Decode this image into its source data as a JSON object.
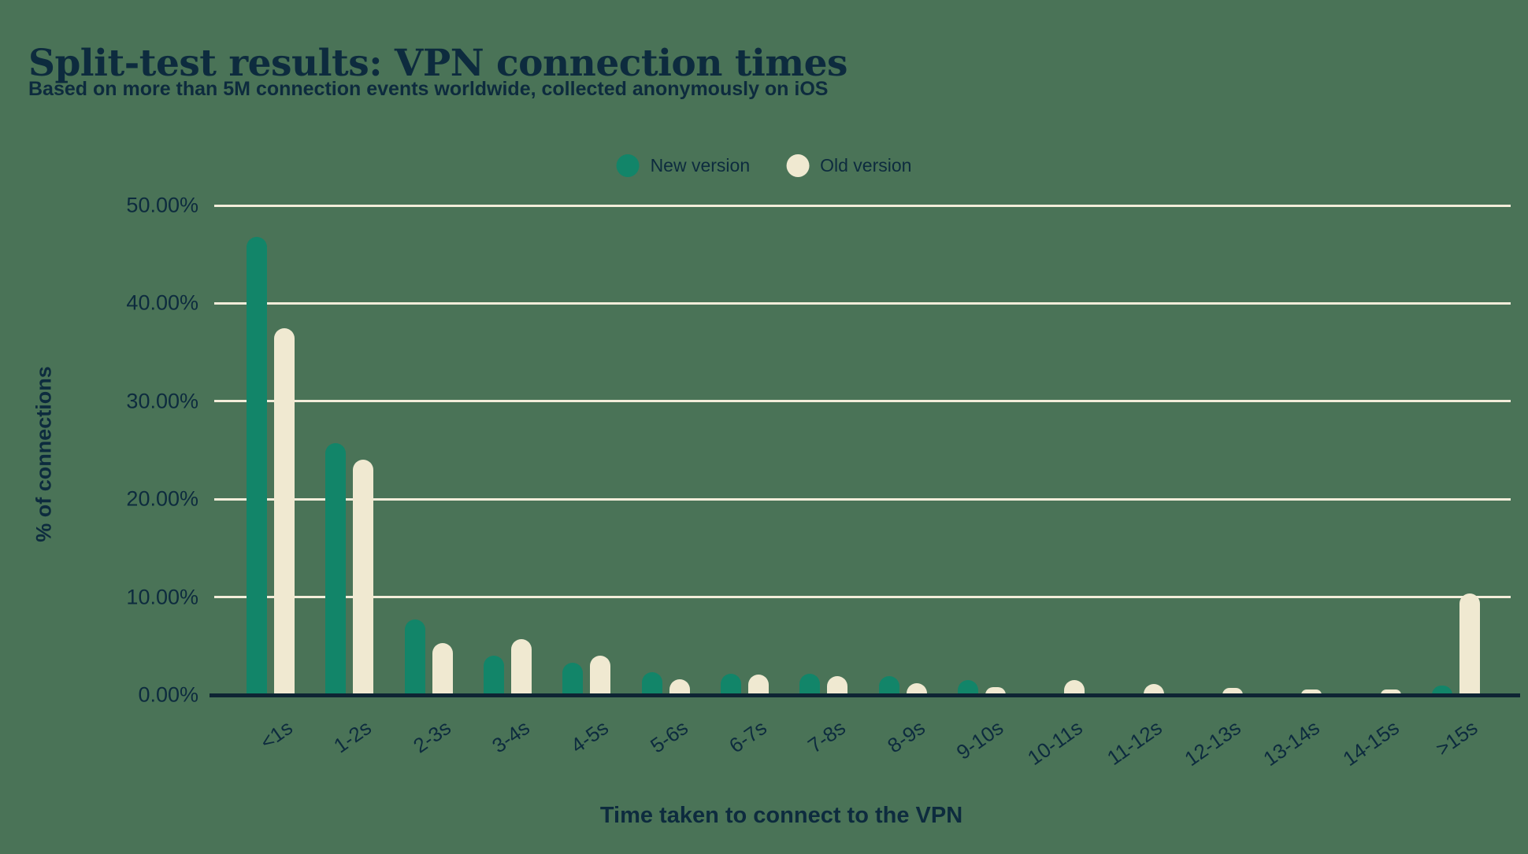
{
  "page": {
    "title": "Split-test results: VPN connection times",
    "subtitle": "Based on more than 5M connection events worldwide, collected anonymously on iOS"
  },
  "legend": {
    "items": [
      {
        "label": "New version",
        "color": "#128569"
      },
      {
        "label": "Old version",
        "color": "#F0E9D1"
      }
    ]
  },
  "colors": {
    "background": "#4A7357",
    "text_navy": "#0D2B3E",
    "new_version_teal": "#128569",
    "old_version_cream": "#F0E9D1",
    "gridline_cream": "#F3EDDA",
    "axis_navy": "#0E2433"
  },
  "chart_data": {
    "type": "bar",
    "title": "Split-test results: VPN connection times",
    "subtitle": "Based on more than 5M connection events worldwide, collected anonymously on iOS",
    "xlabel": "Time taken to connect to the VPN",
    "ylabel": "% of connections",
    "ylim": [
      0,
      50
    ],
    "grid": true,
    "legend_position": "top",
    "categories": [
      "<1s",
      "1-2s",
      "2-3s",
      "3-4s",
      "4-5s",
      "5-6s",
      "6-7s",
      "7-8s",
      "8-9s",
      "9-10s",
      "10-11s",
      "11-12s",
      "12-13s",
      "13-14s",
      "14-15s",
      ">15s"
    ],
    "yticks": [
      {
        "label": "50.00%",
        "value": 50
      },
      {
        "label": "40.00%",
        "value": 40
      },
      {
        "label": "30.00%",
        "value": 30
      },
      {
        "label": "20.00%",
        "value": 20
      },
      {
        "label": "10.00%",
        "value": 10
      },
      {
        "label": "0.00%",
        "value": 0
      }
    ],
    "series": [
      {
        "name": "New version",
        "color": "#128569",
        "values": [
          46.8,
          25.7,
          7.7,
          4.0,
          3.3,
          2.3,
          2.2,
          2.2,
          1.9,
          1.5,
          0,
          0,
          0,
          0,
          0,
          1.0
        ]
      },
      {
        "name": "Old version",
        "color": "#F0E9D1",
        "values": [
          37.5,
          24.0,
          5.3,
          5.7,
          4.0,
          1.6,
          2.1,
          1.9,
          1.2,
          0.8,
          1.5,
          1.1,
          0.7,
          0.6,
          0.6,
          10.4
        ]
      }
    ]
  }
}
